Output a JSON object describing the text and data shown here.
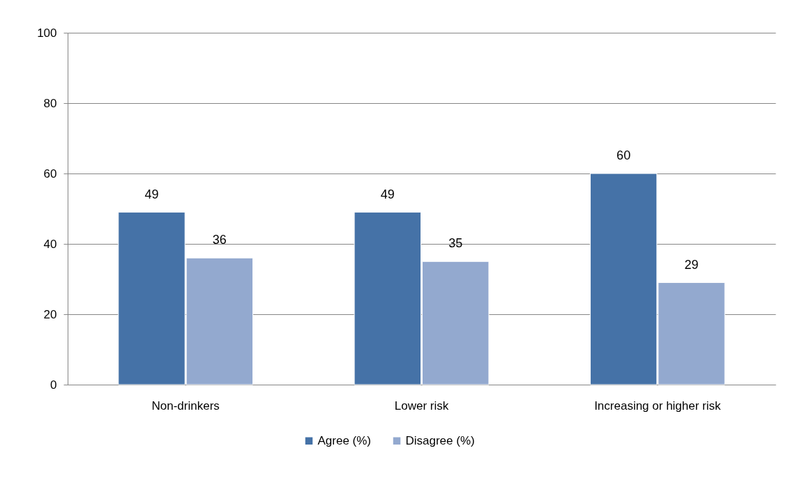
{
  "chart_data": {
    "type": "bar",
    "categories": [
      "Non-drinkers",
      "Lower risk",
      "Increasing or higher risk"
    ],
    "series": [
      {
        "name": "Agree (%)",
        "color": "#4572a7",
        "values": [
          49,
          49,
          60
        ]
      },
      {
        "name": "Disagree (%)",
        "color": "#93a9cf",
        "values": [
          36,
          35,
          29
        ]
      }
    ],
    "ylim": [
      0,
      100
    ],
    "yticks": [
      0,
      20,
      40,
      60,
      80,
      100
    ],
    "grid": "y",
    "legend": "bottom",
    "data_labels": true
  }
}
